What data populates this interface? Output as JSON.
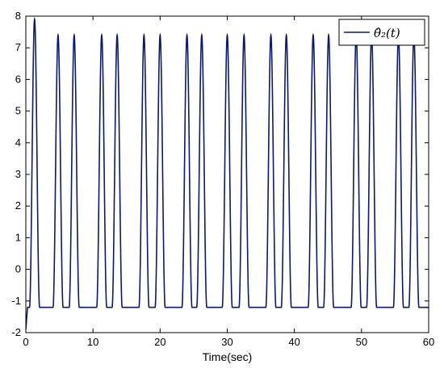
{
  "chart_data": {
    "type": "line",
    "title": "",
    "xlabel": "Time(sec)",
    "ylabel": "",
    "xlim": [
      0,
      60
    ],
    "ylim": [
      -2,
      8
    ],
    "xticks": [
      "0",
      "10",
      "20",
      "30",
      "40",
      "50",
      "60"
    ],
    "yticks": [
      "-2",
      "-1",
      "0",
      "1",
      "2",
      "3",
      "4",
      "5",
      "6",
      "7",
      "8"
    ],
    "grid": false,
    "legend_position": "top-right",
    "baseline": -1.2,
    "series": [
      {
        "name": "θ̂₂(t)",
        "color": "#0b1a6b",
        "peak_times": [
          1.3,
          4.8,
          7.2,
          11.3,
          13.6,
          17.6,
          20.0,
          24.0,
          26.2,
          30.0,
          32.5,
          36.5,
          38.8,
          42.8,
          45.1,
          49.2,
          51.5,
          55.5,
          57.8
        ],
        "peak_values": [
          7.9,
          7.4,
          7.4,
          7.4,
          7.4,
          7.4,
          7.4,
          7.4,
          7.4,
          7.4,
          7.4,
          7.4,
          7.4,
          7.4,
          7.4,
          7.4,
          7.4,
          7.4,
          7.4
        ],
        "peak_width_sec": 0.75
      }
    ]
  }
}
